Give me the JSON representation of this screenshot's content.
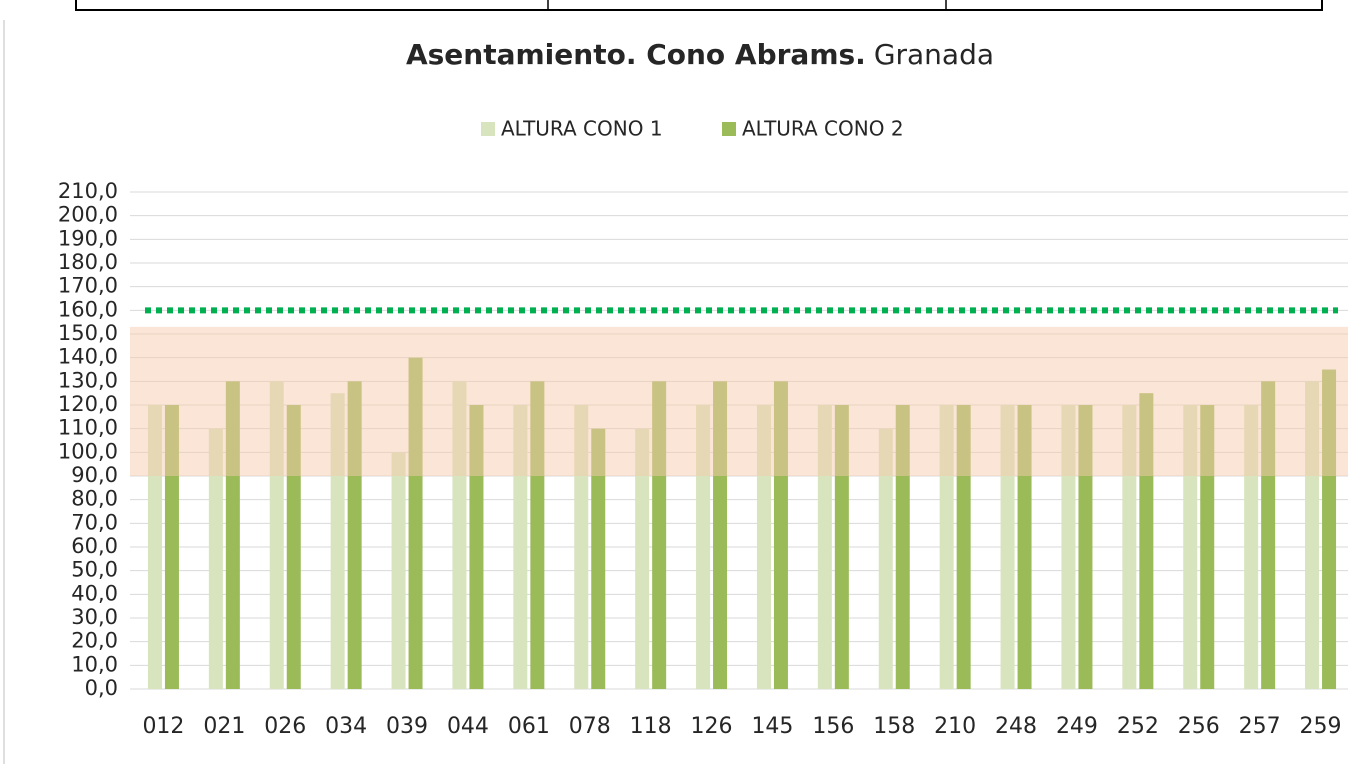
{
  "chart_data": {
    "type": "bar",
    "title": "Asentamiento. Cono Abrams.",
    "title_suffix": "Granada",
    "categories": [
      "012",
      "021",
      "026",
      "034",
      "039",
      "044",
      "061",
      "078",
      "118",
      "126",
      "145",
      "156",
      "158",
      "210",
      "248",
      "249",
      "252",
      "256",
      "257",
      "259"
    ],
    "series": [
      {
        "name": "ALTURA CONO 1",
        "color": "#d7e4bd",
        "values": [
          120,
          110,
          130,
          125,
          100,
          130,
          120,
          120,
          110,
          120,
          120,
          120,
          110,
          120,
          120,
          120,
          120,
          120,
          120,
          130
        ]
      },
      {
        "name": "ALTURA CONO 2",
        "color": "#9bbb59",
        "values": [
          120,
          130,
          120,
          130,
          140,
          120,
          130,
          110,
          130,
          130,
          130,
          120,
          120,
          120,
          120,
          120,
          125,
          120,
          130,
          135
        ]
      }
    ],
    "ylim": [
      0,
      210
    ],
    "yticks": [
      {
        "value": 0,
        "label": "0,0"
      },
      {
        "value": 10,
        "label": "10,0"
      },
      {
        "value": 20,
        "label": "20,0"
      },
      {
        "value": 30,
        "label": "30,0"
      },
      {
        "value": 40,
        "label": "40,0"
      },
      {
        "value": 50,
        "label": "50,0"
      },
      {
        "value": 60,
        "label": "60,0"
      },
      {
        "value": 70,
        "label": "70,0"
      },
      {
        "value": 80,
        "label": "80,0"
      },
      {
        "value": 90,
        "label": "90,0"
      },
      {
        "value": 100,
        "label": "100,0"
      },
      {
        "value": 110,
        "label": "110,0"
      },
      {
        "value": 120,
        "label": "120,0"
      },
      {
        "value": 130,
        "label": "130,0"
      },
      {
        "value": 140,
        "label": "140,0"
      },
      {
        "value": 150,
        "label": "150,0"
      },
      {
        "value": 160,
        "label": "160,0"
      },
      {
        "value": 170,
        "label": "170,0"
      },
      {
        "value": 180,
        "label": "180,0"
      },
      {
        "value": 190,
        "label": "190,0"
      },
      {
        "value": 200,
        "label": "200,0"
      },
      {
        "value": 210,
        "label": "210,0"
      }
    ],
    "grid": true,
    "legend": "top",
    "bands": [
      {
        "from": 90,
        "to": 153,
        "color": "#f8cbad"
      }
    ],
    "reference_lines": [
      {
        "value": 160,
        "color": "#00b050"
      }
    ]
  }
}
